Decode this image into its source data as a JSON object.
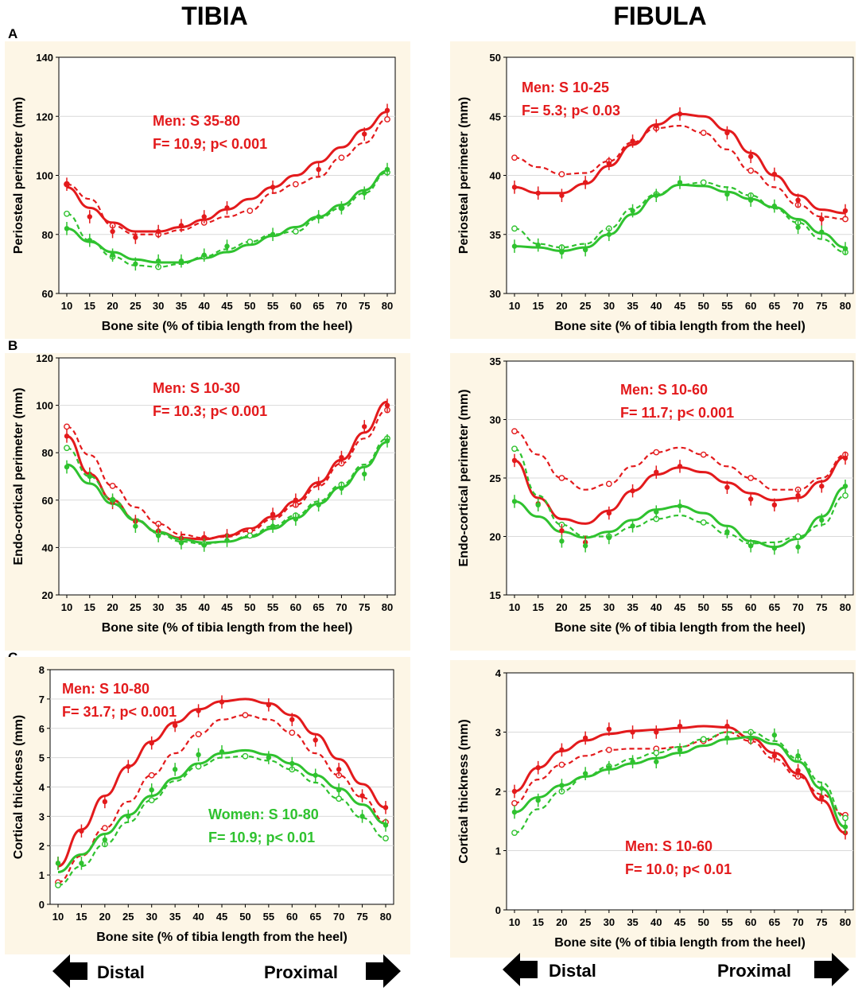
{
  "column_titles": [
    "TIBIA",
    "FIBULA"
  ],
  "direction_labels": {
    "distal": "Distal",
    "proximal": "Proximal"
  },
  "colors": {
    "men": "#e31a1c",
    "women": "#2fc22f",
    "panel_bg": "#fdf6e6",
    "grid": "#d9d9d9"
  },
  "chart_data": [
    {
      "id": "A-tibia",
      "row": "A",
      "type": "line",
      "categories": [
        10,
        15,
        20,
        25,
        30,
        35,
        40,
        45,
        50,
        55,
        60,
        65,
        70,
        75,
        80
      ],
      "xlabel": "Bone site (% of tibia length from the heel)",
      "ylabel": "Periosteal perimeter (mm)",
      "ylim": [
        60,
        140
      ],
      "yticks": [
        60,
        80,
        100,
        120,
        140
      ],
      "annotations": [
        {
          "lines": [
            "Men: S 35-80",
            "F= 10.9; p< 0.001"
          ],
          "color": "men",
          "position": "upper-left"
        }
      ],
      "series": [
        {
          "name": "Men fit",
          "group": "men",
          "style": "solid",
          "values": [
            96,
            89,
            84,
            81,
            81,
            82.5,
            85,
            88.5,
            92,
            96,
            100,
            104.5,
            109.5,
            115.5,
            121.5
          ]
        },
        {
          "name": "Men observed",
          "group": "men",
          "style": "dashed",
          "marker": "open",
          "values": [
            97,
            92,
            83,
            80,
            80,
            81.5,
            84,
            86,
            88,
            94,
            97,
            99.5,
            106,
            111,
            119
          ]
        },
        {
          "name": "Women fit",
          "group": "women",
          "style": "solid",
          "values": [
            82,
            77.5,
            74,
            71.5,
            70.5,
            70.5,
            72,
            74,
            76.5,
            79.5,
            82.5,
            86,
            90,
            95,
            101.5
          ]
        },
        {
          "name": "Women observed",
          "group": "women",
          "style": "dashed",
          "marker": "open",
          "values": [
            87,
            78,
            72.5,
            69.5,
            69,
            70,
            72.5,
            75,
            77.5,
            80,
            81,
            85.5,
            89,
            94,
            101
          ]
        }
      ],
      "points_men": [
        97,
        86,
        81,
        79,
        81,
        83,
        86,
        89,
        null,
        96,
        null,
        102,
        null,
        114,
        122
      ],
      "points_women": [
        82,
        78,
        73,
        70,
        71,
        71,
        73,
        76,
        null,
        80,
        null,
        86,
        89,
        94,
        102
      ]
    },
    {
      "id": "A-fibula",
      "row": "A",
      "type": "line",
      "categories": [
        10,
        15,
        20,
        25,
        30,
        35,
        40,
        45,
        50,
        55,
        60,
        65,
        70,
        75,
        80
      ],
      "xlabel": "Bone site (% of tibia length from the heel)",
      "ylabel": "Periosteal perimeter (mm)",
      "ylim": [
        30,
        50
      ],
      "yticks": [
        30,
        35,
        40,
        45,
        50
      ],
      "annotations": [
        {
          "lines": [
            "Men: S 10-25",
            "F= 5.3; p< 0.03"
          ],
          "color": "men",
          "position": "upper-left"
        }
      ],
      "series": [
        {
          "name": "Men fit",
          "group": "men",
          "style": "solid",
          "values": [
            39,
            38.5,
            38.5,
            39.3,
            40.8,
            42.6,
            44.3,
            45.2,
            45,
            43.8,
            41.9,
            40,
            38.3,
            37.1,
            36.8
          ]
        },
        {
          "name": "Men observed",
          "group": "men",
          "style": "dashed",
          "marker": "open",
          "values": [
            41.5,
            40.7,
            40.1,
            40.2,
            41.2,
            42.8,
            44,
            44.2,
            43.6,
            42.2,
            40.4,
            39,
            37.5,
            36.5,
            36.3
          ]
        },
        {
          "name": "Women fit",
          "group": "women",
          "style": "solid",
          "values": [
            34,
            33.9,
            33.6,
            33.9,
            35,
            36.7,
            38.3,
            39.2,
            39.1,
            38.6,
            38,
            37.3,
            36.3,
            35.1,
            33.9
          ]
        },
        {
          "name": "Women observed",
          "group": "women",
          "style": "dashed",
          "marker": "open",
          "values": [
            35.5,
            34.2,
            33.9,
            34.2,
            35.5,
            37.2,
            38.4,
            39.2,
            39.4,
            39,
            38.3,
            37.2,
            36,
            34.6,
            33.5
          ]
        }
      ],
      "points_men": [
        39,
        38.5,
        38.3,
        39.4,
        41,
        42.9,
        44.2,
        45.2,
        null,
        43.6,
        41.6,
        40.1,
        37.9,
        36.3,
        37
      ],
      "points_women": [
        34,
        34.1,
        33.5,
        33.7,
        35,
        37,
        38.3,
        39.4,
        null,
        38.4,
        37.9,
        37.4,
        35.6,
        35.2,
        33.8
      ]
    },
    {
      "id": "B-tibia",
      "row": "B",
      "type": "line",
      "categories": [
        10,
        15,
        20,
        25,
        30,
        35,
        40,
        45,
        50,
        55,
        60,
        65,
        70,
        75,
        80
      ],
      "xlabel": "Bone site (% of tibia length from the heel)",
      "ylabel": "Endo-cortical perimeter (mm)",
      "ylim": [
        20,
        120
      ],
      "yticks": [
        20,
        40,
        60,
        80,
        100,
        120
      ],
      "annotations": [
        {
          "lines": [
            "Men: S 10-30",
            "F= 10.3; p< 0.001"
          ],
          "color": "men",
          "position": "upper-left"
        }
      ],
      "series": [
        {
          "name": "Men fit",
          "group": "men",
          "style": "solid",
          "values": [
            87,
            71,
            60,
            51.5,
            46.5,
            44,
            43.5,
            45,
            48,
            53,
            59.5,
            67.5,
            77,
            88.5,
            101.5
          ]
        },
        {
          "name": "Men observed",
          "group": "men",
          "style": "dashed",
          "marker": "open",
          "values": [
            91,
            79,
            66,
            57,
            50,
            45.5,
            44,
            44.5,
            47,
            52,
            58,
            66,
            75.5,
            86,
            98
          ]
        },
        {
          "name": "Women fit",
          "group": "women",
          "style": "solid",
          "values": [
            75,
            67,
            58.5,
            51.5,
            46.5,
            43.5,
            42,
            42.5,
            44.5,
            48,
            52.5,
            58.5,
            65.5,
            74,
            84.5
          ]
        },
        {
          "name": "Women observed",
          "group": "women",
          "style": "dashed",
          "marker": "open",
          "values": [
            82,
            70,
            60,
            52,
            46,
            42.5,
            41.5,
            42.5,
            45,
            49,
            53.5,
            59.5,
            66.5,
            75,
            86
          ]
        }
      ],
      "points_men": [
        87,
        71,
        59,
        51,
        47,
        44,
        44,
        45,
        null,
        54,
        60,
        67,
        78,
        91,
        100
      ],
      "points_women": [
        74,
        70,
        60,
        49,
        45,
        42,
        41,
        43,
        null,
        49,
        52,
        58,
        65,
        71,
        85
      ]
    },
    {
      "id": "B-fibula",
      "row": "B",
      "type": "line",
      "categories": [
        10,
        15,
        20,
        25,
        30,
        35,
        40,
        45,
        50,
        55,
        60,
        65,
        70,
        75,
        80
      ],
      "xlabel": "Bone site (% of tibia length from the heel)",
      "ylabel": "Endo-cortical perimeter (mm)",
      "ylim": [
        15,
        35
      ],
      "yticks": [
        15,
        20,
        25,
        30,
        35
      ],
      "annotations": [
        {
          "lines": [
            "Men: S 10-60",
            "F= 11.7; p< 0.001"
          ],
          "color": "men",
          "position": "upper-center"
        }
      ],
      "series": [
        {
          "name": "Men fit",
          "group": "men",
          "style": "solid",
          "values": [
            26.5,
            23.3,
            21.5,
            21.1,
            22.2,
            23.9,
            25.3,
            25.9,
            25.5,
            24.6,
            23.7,
            23.1,
            23.3,
            24.7,
            26.8
          ]
        },
        {
          "name": "Men observed",
          "group": "men",
          "style": "dashed",
          "marker": "open",
          "values": [
            29,
            27,
            25,
            24,
            24.5,
            26,
            27.2,
            27.6,
            27,
            26,
            25,
            24,
            24,
            25,
            27
          ]
        },
        {
          "name": "Women fit",
          "group": "women",
          "style": "solid",
          "values": [
            23,
            21.7,
            20.4,
            19.9,
            20.4,
            21.4,
            22.3,
            22.6,
            22,
            20.9,
            19.6,
            19.1,
            19.8,
            21.7,
            24.2
          ]
        },
        {
          "name": "Women observed",
          "group": "women",
          "style": "dashed",
          "marker": "open",
          "values": [
            27.5,
            23.5,
            21,
            20,
            20,
            20.8,
            21.5,
            21.8,
            21.2,
            20.2,
            19.4,
            19.5,
            20,
            21,
            23.5
          ]
        }
      ],
      "points_men": [
        26.5,
        22.8,
        20.5,
        19.5,
        22,
        23.9,
        25.5,
        26,
        null,
        24.2,
        23.2,
        22.7,
        23.5,
        24.3,
        26.7
      ],
      "points_women": [
        23,
        22.7,
        19.6,
        19.2,
        19.9,
        20.9,
        22.1,
        22.6,
        null,
        20.4,
        19.2,
        19,
        19.1,
        21.4,
        24.3
      ]
    },
    {
      "id": "C-tibia",
      "row": "C",
      "type": "line",
      "categories": [
        10,
        15,
        20,
        25,
        30,
        35,
        40,
        45,
        50,
        55,
        60,
        65,
        70,
        75,
        80
      ],
      "xlabel": "Bone site (% of tibia length from the heel)",
      "ylabel": "Cortical thickness (mm)",
      "ylim": [
        0,
        8
      ],
      "yticks": [
        0,
        1,
        2,
        3,
        4,
        5,
        6,
        7,
        8
      ],
      "annotations": [
        {
          "lines": [
            "Men: S 10-80",
            "F= 31.7; p< 0.001"
          ],
          "color": "men",
          "position": "upper-left"
        },
        {
          "lines": [
            "Women: S 10-80",
            "F= 10.9; p< 0.01"
          ],
          "color": "women",
          "position": "lower-right"
        }
      ],
      "series": [
        {
          "name": "Men fit",
          "group": "men",
          "style": "solid",
          "values": [
            1.3,
            2.55,
            3.7,
            4.7,
            5.55,
            6.2,
            6.65,
            6.92,
            7,
            6.85,
            6.45,
            5.8,
            4.95,
            4.1,
            3.3
          ]
        },
        {
          "name": "Men observed",
          "group": "men",
          "style": "dashed",
          "marker": "open",
          "values": [
            0.75,
            1.65,
            2.6,
            3.5,
            4.4,
            5.15,
            5.8,
            6.3,
            6.45,
            6.3,
            5.85,
            5.15,
            4.4,
            3.65,
            2.8
          ]
        },
        {
          "name": "Women fit",
          "group": "women",
          "style": "solid",
          "values": [
            1.1,
            1.7,
            2.4,
            3.05,
            3.7,
            4.3,
            4.8,
            5.15,
            5.25,
            5.1,
            4.8,
            4.4,
            3.95,
            3.4,
            2.75
          ]
        },
        {
          "name": "Women observed",
          "group": "women",
          "style": "dashed",
          "marker": "open",
          "values": [
            0.65,
            1.3,
            2.05,
            2.8,
            3.55,
            4.2,
            4.7,
            5.0,
            5.05,
            4.9,
            4.6,
            4.15,
            3.6,
            2.95,
            2.25
          ]
        }
      ],
      "points_men": [
        1.4,
        2.5,
        3.5,
        4.7,
        5.5,
        6.1,
        6.6,
        6.9,
        null,
        6.8,
        6.3,
        5.6,
        4.6,
        3.7,
        3.3
      ],
      "points_women": [
        1.4,
        1.4,
        2.2,
        3,
        3.9,
        4.6,
        5.1,
        5.2,
        null,
        5,
        4.8,
        4.4,
        3.9,
        3,
        2.7
      ]
    },
    {
      "id": "C-fibula",
      "row": "C",
      "type": "line",
      "categories": [
        10,
        15,
        20,
        25,
        30,
        35,
        40,
        45,
        50,
        55,
        60,
        65,
        70,
        75,
        80
      ],
      "xlabel": "Bone site (% of tibia length from the heel)",
      "ylabel": "Cortical thickness (mm)",
      "ylim": [
        0,
        4
      ],
      "yticks": [
        0,
        1,
        2,
        3,
        4
      ],
      "annotations": [
        {
          "lines": [
            "Men: S 10-60",
            "F= 10.0; p< 0.01"
          ],
          "color": "men",
          "position": "lower-right"
        }
      ],
      "series": [
        {
          "name": "Men fit",
          "group": "men",
          "style": "solid",
          "values": [
            2,
            2.4,
            2.68,
            2.86,
            2.97,
            3.02,
            3.04,
            3.07,
            3.1,
            3.08,
            2.9,
            2.65,
            2.3,
            1.85,
            1.3
          ]
        },
        {
          "name": "Men observed",
          "group": "men",
          "style": "dashed",
          "marker": "open",
          "values": [
            1.8,
            2.2,
            2.45,
            2.6,
            2.7,
            2.72,
            2.72,
            2.75,
            2.85,
            3.0,
            2.85,
            2.55,
            2.25,
            1.95,
            1.6
          ]
        },
        {
          "name": "Women fit",
          "group": "women",
          "style": "solid",
          "values": [
            1.65,
            1.9,
            2.1,
            2.25,
            2.37,
            2.47,
            2.56,
            2.65,
            2.77,
            2.88,
            2.92,
            2.8,
            2.5,
            2.05,
            1.4
          ]
        },
        {
          "name": "Women observed",
          "group": "women",
          "style": "dashed",
          "marker": "open",
          "values": [
            1.3,
            1.7,
            2.0,
            2.25,
            2.42,
            2.55,
            2.65,
            2.75,
            2.88,
            3.0,
            3.0,
            2.85,
            2.55,
            2.15,
            1.55
          ]
        }
      ],
      "points_men": [
        2,
        2.4,
        2.7,
        2.9,
        3.05,
        3,
        3,
        3.1,
        null,
        3.1,
        2.9,
        2.6,
        2.35,
        1.9,
        1.3
      ],
      "points_women": [
        1.65,
        1.85,
        2.1,
        2.3,
        2.4,
        2.5,
        2.5,
        2.7,
        null,
        2.9,
        2.9,
        2.95,
        2.6,
        2.05,
        1.4
      ]
    }
  ]
}
